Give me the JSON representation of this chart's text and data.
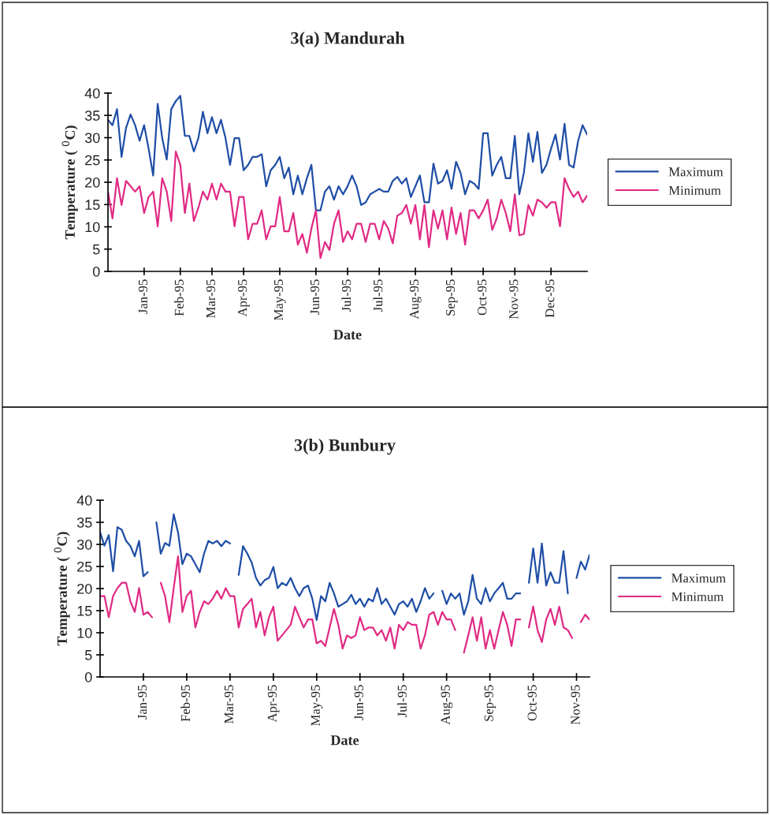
{
  "chart_data": [
    {
      "type": "line",
      "title": "3(a) Mandurah",
      "xlabel": "Date",
      "ylabel": "Temperature ( $^{0}$C)",
      "ylim": [
        0,
        40
      ],
      "yticks": [
        0,
        5,
        10,
        15,
        20,
        25,
        30,
        35,
        40
      ],
      "categories": [
        null,
        null,
        null,
        null,
        null,
        null,
        null,
        null,
        "Jan-95",
        null,
        null,
        null,
        null,
        null,
        null,
        null,
        "Feb-95",
        null,
        null,
        null,
        null,
        null,
        null,
        "Mar-95",
        null,
        null,
        null,
        null,
        null,
        null,
        "Apr-95",
        null,
        null,
        null,
        null,
        null,
        null,
        null,
        "May-95",
        null,
        null,
        null,
        null,
        null,
        null,
        null,
        "Jun-95",
        null,
        null,
        null,
        null,
        null,
        null,
        "Jul-95",
        null,
        null,
        null,
        null,
        null,
        null,
        "Jul-95",
        null,
        null,
        null,
        null,
        null,
        null,
        null,
        "Aug-95",
        null,
        null,
        null,
        null,
        null,
        null,
        null,
        "Sep-95",
        null,
        null,
        null,
        null,
        null,
        null,
        "Oct-95",
        null,
        null,
        null,
        null,
        null,
        null,
        "Nov-95",
        null,
        null,
        null,
        null,
        null,
        null,
        null,
        "Dec-95",
        null,
        null,
        null,
        null,
        null,
        null,
        null,
        null
      ],
      "grid": false,
      "legend": "right",
      "marker": "none",
      "line_style": "solid",
      "series": [
        {
          "name": "Maximum",
          "color": "#1f4ea6",
          "values": [
            34,
            32.8,
            36.4,
            25.7,
            32.2,
            35.2,
            32.8,
            29.3,
            32.8,
            27.5,
            21.5,
            37.6,
            29.9,
            25.1,
            36.4,
            38.2,
            39.4,
            30.4,
            30.4,
            26.9,
            29.9,
            35.8,
            31,
            34.6,
            31,
            34,
            29.9,
            23.9,
            29.9,
            29.9,
            22.7,
            23.9,
            25.7,
            25.7,
            26.3,
            19.1,
            22.7,
            23.9,
            25.7,
            20.9,
            23.3,
            17.3,
            21.5,
            17.3,
            20.9,
            23.9,
            13.7,
            13.7,
            17.9,
            19.1,
            16.1,
            19.1,
            17.3,
            19.1,
            21.5,
            19.1,
            14.9,
            15.5,
            17.3,
            17.9,
            18.5,
            17.9,
            17.9,
            20.3,
            21.2,
            19.7,
            20.9,
            16.7,
            19.1,
            21.5,
            15.5,
            15.5,
            24.2,
            19.7,
            20.3,
            22.7,
            18.5,
            24.6,
            22.1,
            17.3,
            20.3,
            19.7,
            18.5,
            31,
            31,
            21.5,
            23.9,
            25.7,
            20.9,
            20.9,
            30.4,
            17.3,
            22.1,
            31,
            24.6,
            31.3,
            22.1,
            23.9,
            27.5,
            30.7,
            25.1,
            33.1,
            23.9,
            23.3,
            29.3,
            32.8,
            30.7
          ]
        },
        {
          "name": "Minimum",
          "color": "#e02a84",
          "values": [
            17.9,
            11.9,
            20.9,
            14.9,
            20.3,
            19.1,
            17.9,
            19.1,
            13.1,
            16.7,
            17.9,
            10.1,
            20.9,
            17.9,
            11.3,
            26.9,
            23.9,
            13.1,
            19.7,
            11.3,
            14.3,
            17.9,
            16.1,
            19.7,
            16.1,
            19.7,
            17.9,
            17.9,
            10.1,
            16.7,
            16.7,
            7.2,
            10.7,
            10.7,
            13.7,
            7.2,
            10.1,
            10.1,
            16.7,
            9,
            9,
            13.1,
            6,
            8.4,
            4.2,
            9.6,
            13.7,
            3,
            6.6,
            4.8,
            10.7,
            13.7,
            6.6,
            9,
            7.2,
            10.7,
            10.7,
            6.6,
            10.7,
            10.7,
            7.2,
            11.3,
            9.6,
            6.3,
            12.5,
            13.1,
            14.9,
            10.7,
            14.9,
            7.2,
            14.9,
            5.4,
            13.7,
            9.6,
            13.7,
            7.2,
            14.3,
            8.4,
            13.1,
            6,
            13.7,
            13.7,
            11.9,
            13.7,
            16.1,
            9.3,
            11.9,
            16.1,
            13.1,
            9,
            17.3,
            8.1,
            8.4,
            14.9,
            12.5,
            16.1,
            15.5,
            14.3,
            15.5,
            15.5,
            10.1,
            20.9,
            18.5,
            16.7,
            17.9,
            15.5,
            17
          ]
        }
      ]
    },
    {
      "type": "line",
      "title": "3(b) Bunbury",
      "xlabel": "Date",
      "ylabel": "Temperature ( $^{0}$C)",
      "ylim": [
        0,
        40
      ],
      "yticks": [
        0,
        5,
        10,
        15,
        20,
        25,
        30,
        35,
        40
      ],
      "categories": [
        null,
        null,
        null,
        null,
        null,
        null,
        null,
        null,
        null,
        null,
        "Jan-95",
        null,
        null,
        null,
        null,
        null,
        null,
        null,
        null,
        null,
        "Feb-95",
        null,
        null,
        null,
        null,
        null,
        null,
        null,
        null,
        null,
        "Mar-95",
        null,
        null,
        null,
        null,
        null,
        null,
        null,
        null,
        null,
        "Apr-95",
        null,
        null,
        null,
        null,
        null,
        null,
        null,
        null,
        null,
        "May-95",
        null,
        null,
        null,
        null,
        null,
        null,
        null,
        null,
        null,
        "Jun-95",
        null,
        null,
        null,
        null,
        null,
        null,
        null,
        null,
        null,
        "Jul-95",
        null,
        null,
        null,
        null,
        null,
        null,
        null,
        null,
        null,
        "Aug-95",
        null,
        null,
        null,
        null,
        null,
        null,
        null,
        null,
        null,
        "Sep-95",
        null,
        null,
        null,
        null,
        null,
        null,
        null,
        null,
        null,
        "Oct-95",
        null,
        null,
        null,
        null,
        null,
        null,
        null,
        null,
        null,
        "Nov-95",
        null,
        null,
        null
      ],
      "grid": false,
      "legend": "right",
      "marker": "none",
      "line_style": "solid",
      "series": [
        {
          "name": "Maximum",
          "color": "#1f4ea6",
          "values": [
            32.7,
            29.7,
            32.1,
            23.9,
            33.9,
            33.3,
            30.8,
            29.6,
            27.3,
            30.8,
            22.8,
            23.7,
            null,
            35,
            27.9,
            30.3,
            29.7,
            36.8,
            32.7,
            25.5,
            27.9,
            27.3,
            25.5,
            23.7,
            27.9,
            30.8,
            30.2,
            30.8,
            29.6,
            30.8,
            30.2,
            null,
            23.1,
            29.6,
            27.9,
            25.9,
            22.4,
            20.7,
            21.9,
            22.4,
            24.9,
            20.1,
            21.3,
            20.7,
            22.4,
            20.1,
            18.3,
            20.1,
            20.7,
            17.7,
            12.9,
            18.3,
            17.1,
            21.3,
            18.9,
            15.9,
            16.5,
            17.1,
            18.6,
            16.5,
            17.7,
            15.9,
            17.7,
            17.1,
            20.1,
            16.5,
            17.7,
            15.9,
            14.1,
            16.5,
            17.1,
            15.9,
            17.7,
            14.7,
            17.1,
            20.1,
            17.7,
            18.9,
            null,
            19.5,
            16.5,
            18.9,
            17.7,
            18.9,
            14.1,
            17.1,
            23.1,
            17.7,
            16.5,
            20.1,
            17.1,
            18.9,
            20.1,
            21.3,
            17.7,
            17.7,
            18.9,
            18.9,
            null,
            21.3,
            29.1,
            21.3,
            30.2,
            20.7,
            23.7,
            21.3,
            21.3,
            28.5,
            18.9,
            null,
            22.4,
            26.1,
            24.3,
            27.6
          ]
        },
        {
          "name": "Minimum",
          "color": "#e02a84",
          "values": [
            18.3,
            18.3,
            13.5,
            18.3,
            20.1,
            21.3,
            21.3,
            17.1,
            14.7,
            20.1,
            14.1,
            14.7,
            13.5,
            null,
            21.3,
            18.3,
            12.4,
            20.1,
            27.3,
            14.7,
            18.3,
            19.5,
            11.2,
            14.7,
            17.1,
            16.5,
            17.7,
            19.5,
            17.7,
            20.1,
            18.3,
            18.3,
            11.2,
            15.4,
            16.5,
            17.7,
            11.2,
            14.7,
            9.4,
            13.5,
            15.9,
            8.2,
            9.4,
            10.6,
            11.8,
            15.9,
            13.5,
            11.2,
            13,
            13,
            7.6,
            8.2,
            7,
            11.2,
            15.4,
            11.8,
            6.4,
            9.4,
            8.8,
            9.4,
            13.5,
            10.6,
            11.2,
            11.2,
            9.4,
            10.6,
            8.2,
            11.2,
            6.4,
            11.8,
            10.6,
            12.4,
            11.8,
            11.8,
            6.4,
            9.4,
            14.1,
            14.7,
            11.8,
            14.7,
            13,
            13,
            10.6,
            null,
            5.5,
            9.4,
            13.5,
            8.2,
            13.5,
            6.4,
            10.6,
            6.4,
            10.6,
            14.7,
            11.8,
            7,
            13,
            13,
            null,
            11.2,
            15.9,
            10.6,
            7.9,
            13,
            15.4,
            11.8,
            15.9,
            11.2,
            10.6,
            8.8,
            null,
            12.4,
            14.1,
            13
          ]
        }
      ]
    }
  ]
}
